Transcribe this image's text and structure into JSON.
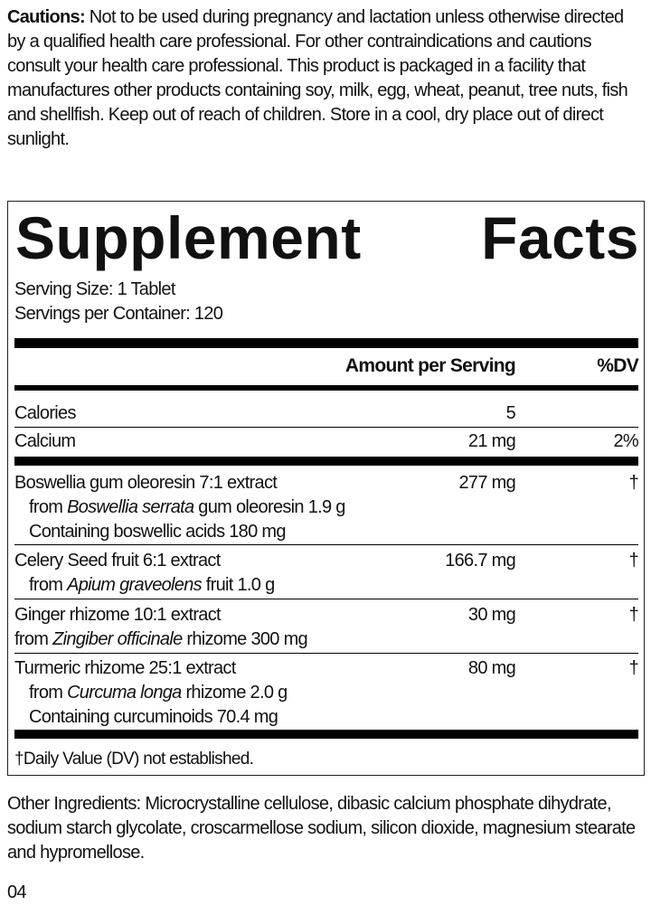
{
  "cautions": {
    "label": "Cautions:",
    "text": " Not to be used during pregnancy and lactation unless otherwise directed by a qualified health care professional. For other contraindications and cautions consult your health care professional. This product is packaged in a facility that manufactures other products containing soy, milk, egg, wheat, peanut, tree nuts, fish and shellfish. Keep out of reach of children. Store in a cool, dry place out of direct sunlight."
  },
  "facts": {
    "title_1": "Supplement",
    "title_2": "Facts",
    "serving_size": "Serving Size: 1 Tablet",
    "servings_per_container": "Servings per Container: 120",
    "col_amount": "Amount per Serving",
    "col_dv": "%DV",
    "nutrients": [
      {
        "name": "Calories",
        "amount": "5",
        "dv": ""
      },
      {
        "name": "Calcium",
        "amount": "21 mg",
        "dv": "2%"
      }
    ],
    "ingredients": [
      {
        "name": "Boswellia gum oleoresin 7:1 extract",
        "amount": "277 mg",
        "dv": "†",
        "line2_pre": "from ",
        "line2_italic": "Boswellia serrata",
        "line2_post": " gum oleoresin 1.9 g",
        "line3": "Containing boswellic acids 180 mg"
      },
      {
        "name": "Celery Seed fruit 6:1 extract",
        "amount": "166.7 mg",
        "dv": "†",
        "line2_pre": "from ",
        "line2_italic": "Apium graveolens",
        "line2_post": " fruit 1.0 g"
      },
      {
        "name": "Ginger rhizome 10:1 extract",
        "amount": "30 mg",
        "dv": "†",
        "line2_pre": "from ",
        "line2_italic": "Zingiber officinale",
        "line2_post": " rhizome 300 mg"
      },
      {
        "name": "Turmeric rhizome 25:1 extract",
        "amount": "80 mg",
        "dv": "†",
        "line2_pre": "from ",
        "line2_italic": "Curcuma longa",
        "line2_post": " rhizome 2.0 g",
        "line3": "Containing curcuminoids 70.4 mg"
      }
    ],
    "footnote": "†Daily Value (DV) not established."
  },
  "other_ingredients": "Other Ingredients: Microcrystalline cellulose, dibasic calcium phosphate dihydrate, sodium starch glycolate, croscarmellose sodium, silicon dioxide, magnesium stearate and hypromellose.",
  "page_number": "04"
}
